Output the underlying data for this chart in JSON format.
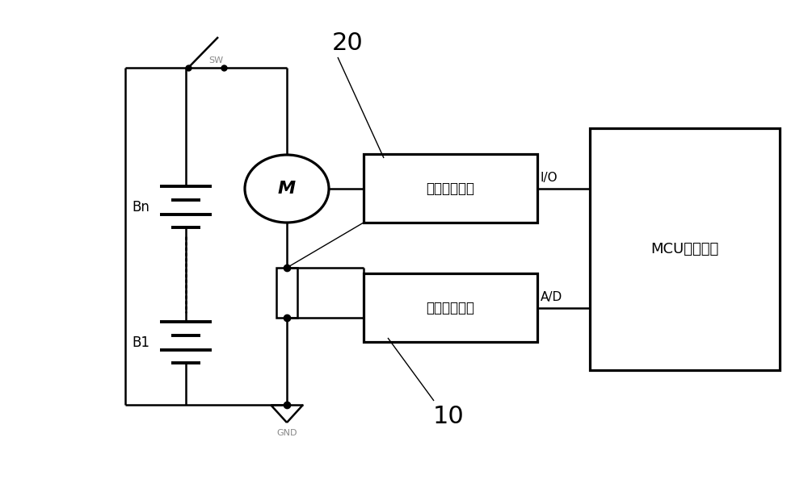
{
  "bg_color": "#ffffff",
  "line_color": "#000000",
  "line_width": 1.8,
  "fig_width": 10.0,
  "fig_height": 5.94,
  "dpi": 100,
  "battery_bn_label": "Bn",
  "battery_b1_label": "B1",
  "gnd_label": "GND",
  "motor_label": "M",
  "sw_label": "SW",
  "box1_label": "过流保护模块",
  "box2_label": "电流采样模块",
  "mcu_label": "MCU微控单元",
  "io_label": "I/O",
  "ad_label": "A/D",
  "label_20": "20",
  "label_10": "10"
}
